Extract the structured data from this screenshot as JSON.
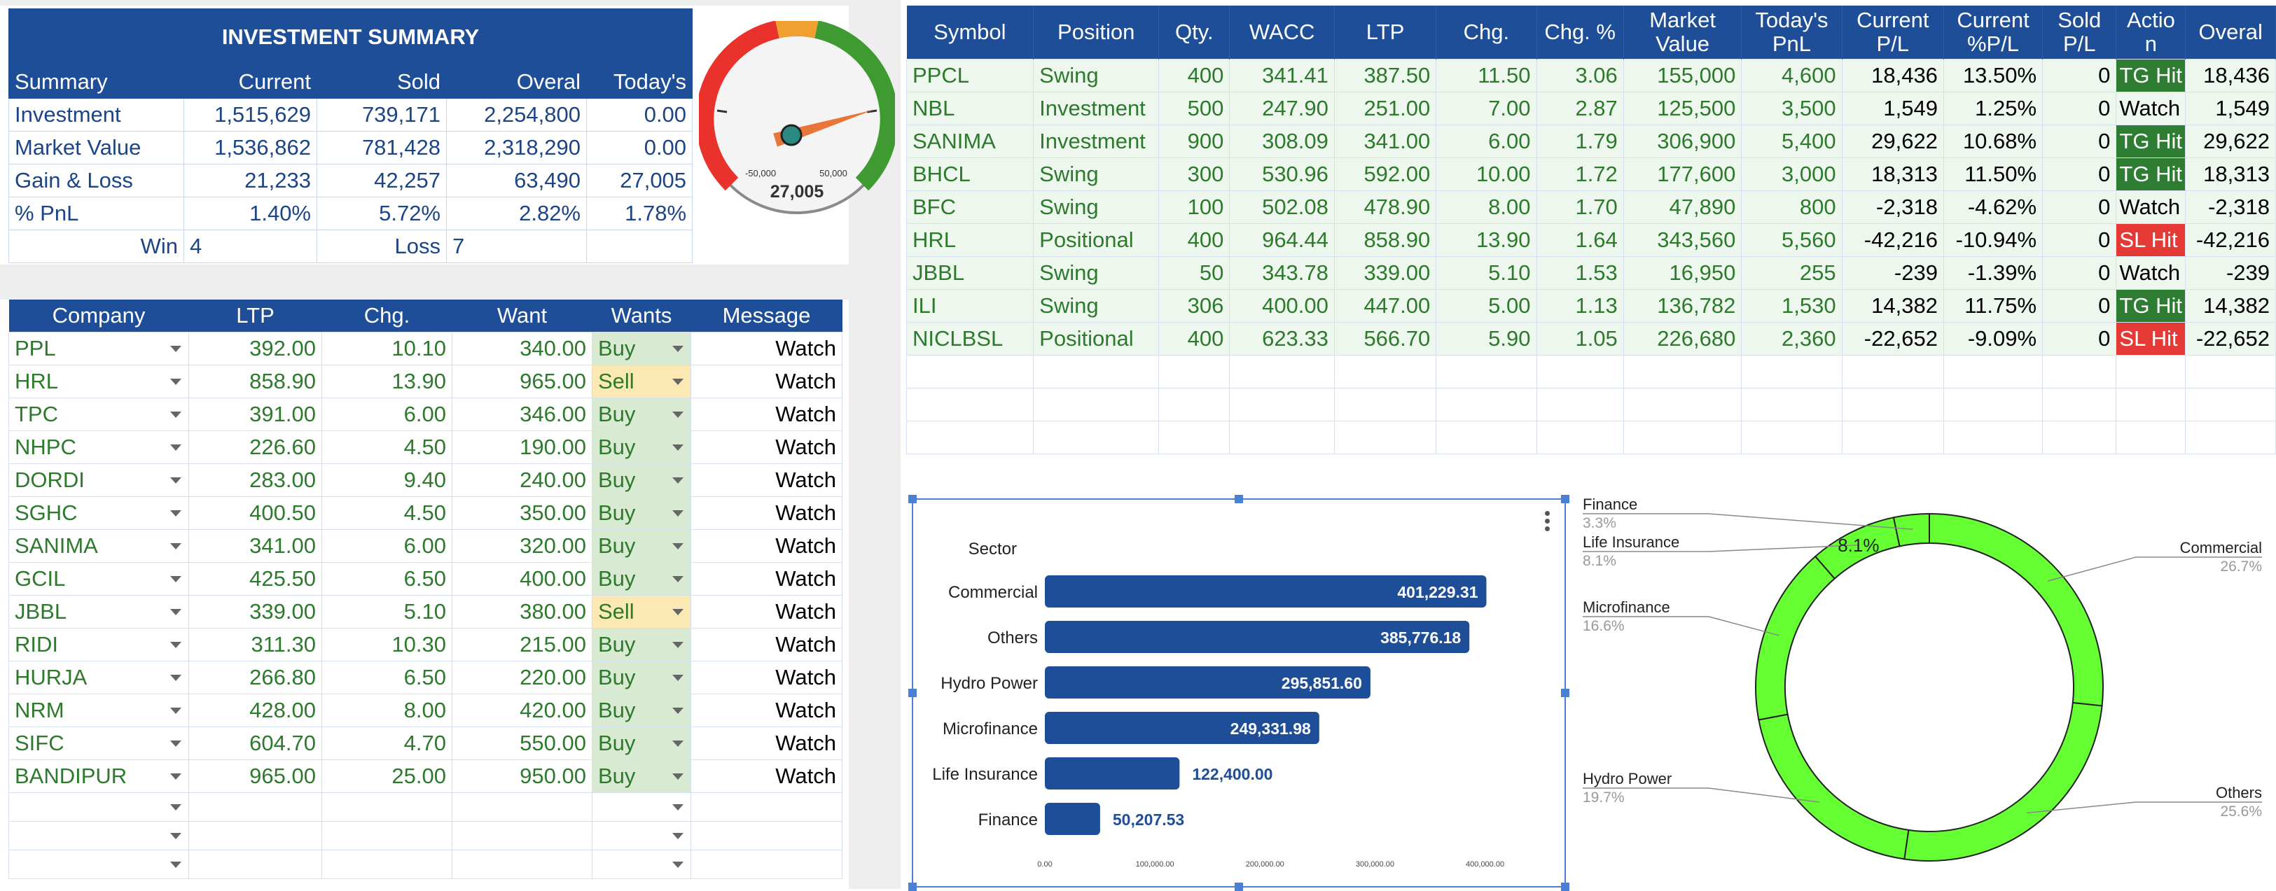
{
  "summary": {
    "title": "INVESTMENT SUMMARY",
    "headers": [
      "Summary",
      "Current",
      "Sold",
      "Overal",
      "Today's"
    ],
    "rows": [
      {
        "label": "Investment",
        "current": "1,515,629",
        "sold": "739,171",
        "overal": "2,254,800",
        "today": "0.00"
      },
      {
        "label": "Market Value",
        "current": "1,536,862",
        "sold": "781,428",
        "overal": "2,318,290",
        "today": "0.00"
      },
      {
        "label": "Gain & Loss",
        "current": "21,233",
        "sold": "42,257",
        "overal": "63,490",
        "today": "27,005"
      },
      {
        "label": "% PnL",
        "current": "1.40%",
        "sold": "5.72%",
        "overal": "2.82%",
        "today": "1.78%"
      }
    ],
    "win_label": "Win",
    "win_value": "4",
    "loss_label": "Loss",
    "loss_value": "7"
  },
  "gauge": {
    "min_label": "-50,000",
    "max_label": "50,000",
    "value_label": "27,005",
    "value": 27005,
    "min": -50000,
    "max": 50000
  },
  "company": {
    "headers": [
      "Company",
      "LTP",
      "Chg.",
      "Want",
      "Wants",
      "Message"
    ],
    "rows": [
      {
        "name": "PPL",
        "ltp": "392.00",
        "chg": "10.10",
        "want": "340.00",
        "wants": "Buy",
        "msg": "Watch"
      },
      {
        "name": "HRL",
        "ltp": "858.90",
        "chg": "13.90",
        "want": "965.00",
        "wants": "Sell",
        "msg": "Watch"
      },
      {
        "name": "TPC",
        "ltp": "391.00",
        "chg": "6.00",
        "want": "346.00",
        "wants": "Buy",
        "msg": "Watch"
      },
      {
        "name": "NHPC",
        "ltp": "226.60",
        "chg": "4.50",
        "want": "190.00",
        "wants": "Buy",
        "msg": "Watch"
      },
      {
        "name": "DORDI",
        "ltp": "283.00",
        "chg": "9.40",
        "want": "240.00",
        "wants": "Buy",
        "msg": "Watch"
      },
      {
        "name": "SGHC",
        "ltp": "400.50",
        "chg": "4.50",
        "want": "350.00",
        "wants": "Buy",
        "msg": "Watch"
      },
      {
        "name": "SANIMA",
        "ltp": "341.00",
        "chg": "6.00",
        "want": "320.00",
        "wants": "Buy",
        "msg": "Watch"
      },
      {
        "name": "GCIL",
        "ltp": "425.50",
        "chg": "6.50",
        "want": "400.00",
        "wants": "Buy",
        "msg": "Watch"
      },
      {
        "name": "JBBL",
        "ltp": "339.00",
        "chg": "5.10",
        "want": "380.00",
        "wants": "Sell",
        "msg": "Watch"
      },
      {
        "name": "RIDI",
        "ltp": "311.30",
        "chg": "10.30",
        "want": "215.00",
        "wants": "Buy",
        "msg": "Watch"
      },
      {
        "name": "HURJA",
        "ltp": "266.80",
        "chg": "6.50",
        "want": "220.00",
        "wants": "Buy",
        "msg": "Watch"
      },
      {
        "name": "NRM",
        "ltp": "428.00",
        "chg": "8.00",
        "want": "420.00",
        "wants": "Buy",
        "msg": "Watch"
      },
      {
        "name": "SIFC",
        "ltp": "604.70",
        "chg": "4.70",
        "want": "550.00",
        "wants": "Buy",
        "msg": "Watch"
      },
      {
        "name": "BANDIPUR",
        "ltp": "965.00",
        "chg": "25.00",
        "want": "950.00",
        "wants": "Buy",
        "msg": "Watch"
      }
    ]
  },
  "holdings": {
    "headers": [
      "Symbol",
      "Position",
      "Qty.",
      "WACC",
      "LTP",
      "Chg.",
      "Chg. %",
      "Market Value",
      "Today's PnL",
      "Current P/L",
      "Current %P/L",
      "Sold P/L",
      "Actio n",
      "Overal"
    ],
    "rows": [
      {
        "symbol": "PPCL",
        "position": "Swing",
        "qty": "400",
        "wacc": "341.41",
        "ltp": "387.50",
        "chg": "11.50",
        "chgp": "3.06",
        "mv": "155,000",
        "today": "4,600",
        "cur": "18,436",
        "curp": "13.50%",
        "sold": "0",
        "action": "TG Hit",
        "overal": "18,436"
      },
      {
        "symbol": "NBL",
        "position": "Investment",
        "qty": "500",
        "wacc": "247.90",
        "ltp": "251.00",
        "chg": "7.00",
        "chgp": "2.87",
        "mv": "125,500",
        "today": "3,500",
        "cur": "1,549",
        "curp": "1.25%",
        "sold": "0",
        "action": "Watch",
        "overal": "1,549"
      },
      {
        "symbol": "SANIMA",
        "position": "Investment",
        "qty": "900",
        "wacc": "308.09",
        "ltp": "341.00",
        "chg": "6.00",
        "chgp": "1.79",
        "mv": "306,900",
        "today": "5,400",
        "cur": "29,622",
        "curp": "10.68%",
        "sold": "0",
        "action": "TG Hit",
        "overal": "29,622"
      },
      {
        "symbol": "BHCL",
        "position": "Swing",
        "qty": "300",
        "wacc": "530.96",
        "ltp": "592.00",
        "chg": "10.00",
        "chgp": "1.72",
        "mv": "177,600",
        "today": "3,000",
        "cur": "18,313",
        "curp": "11.50%",
        "sold": "0",
        "action": "TG Hit",
        "overal": "18,313"
      },
      {
        "symbol": "BFC",
        "position": "Swing",
        "qty": "100",
        "wacc": "502.08",
        "ltp": "478.90",
        "chg": "8.00",
        "chgp": "1.70",
        "mv": "47,890",
        "today": "800",
        "cur": "-2,318",
        "curp": "-4.62%",
        "sold": "0",
        "action": "Watch",
        "overal": "-2,318"
      },
      {
        "symbol": "HRL",
        "position": "Positional",
        "qty": "400",
        "wacc": "964.44",
        "ltp": "858.90",
        "chg": "13.90",
        "chgp": "1.64",
        "mv": "343,560",
        "today": "5,560",
        "cur": "-42,216",
        "curp": "-10.94%",
        "sold": "0",
        "action": "SL Hit",
        "overal": "-42,216"
      },
      {
        "symbol": "JBBL",
        "position": "Swing",
        "qty": "50",
        "wacc": "343.78",
        "ltp": "339.00",
        "chg": "5.10",
        "chgp": "1.53",
        "mv": "16,950",
        "today": "255",
        "cur": "-239",
        "curp": "-1.39%",
        "sold": "0",
        "action": "Watch",
        "overal": "-239"
      },
      {
        "symbol": "ILI",
        "position": "Swing",
        "qty": "306",
        "wacc": "400.00",
        "ltp": "447.00",
        "chg": "5.00",
        "chgp": "1.13",
        "mv": "136,782",
        "today": "1,530",
        "cur": "14,382",
        "curp": "11.75%",
        "sold": "0",
        "action": "TG Hit",
        "overal": "14,382"
      },
      {
        "symbol": "NICLBSL",
        "position": "Positional",
        "qty": "400",
        "wacc": "623.33",
        "ltp": "566.70",
        "chg": "5.90",
        "chgp": "1.05",
        "mv": "226,680",
        "today": "2,360",
        "cur": "-22,652",
        "curp": "-9.09%",
        "sold": "0",
        "action": "SL Hit",
        "overal": "-22,652"
      }
    ]
  },
  "chart_data": [
    {
      "type": "bar",
      "orientation": "horizontal",
      "title": "",
      "ylabel": "Sector",
      "categories": [
        "Commercial",
        "Others",
        "Hydro Power",
        "Microfinance",
        "Life Insurance",
        "Finance"
      ],
      "values": [
        401229.31,
        385776.18,
        295851.6,
        249331.98,
        122400.0,
        50207.53
      ],
      "value_labels": [
        "401,229.31",
        "385,776.18",
        "295,851.60",
        "249,331.98",
        "122,400.00",
        "50,207.53"
      ],
      "xticks": [
        "0.00",
        "100,000.00",
        "200,000.00",
        "300,000.00",
        "400,000.00"
      ],
      "xlim": [
        0,
        420000
      ],
      "color": "#1f4e98"
    },
    {
      "type": "pie",
      "donut": true,
      "color": "#66ff33",
      "slices": [
        {
          "label": "Commercial",
          "pct_label": "26.7%",
          "value": 26.7
        },
        {
          "label": "Others",
          "pct_label": "25.6%",
          "value": 25.6
        },
        {
          "label": "Hydro Power",
          "pct_label": "19.7%",
          "value": 19.7
        },
        {
          "label": "Microfinance",
          "pct_label": "16.6%",
          "value": 16.6
        },
        {
          "label": "Life Insurance",
          "pct_label": "8.1%",
          "value": 8.1
        },
        {
          "label": "Finance",
          "pct_label": "3.3%",
          "value": 3.3
        }
      ],
      "inner_label": "8.1%"
    }
  ]
}
